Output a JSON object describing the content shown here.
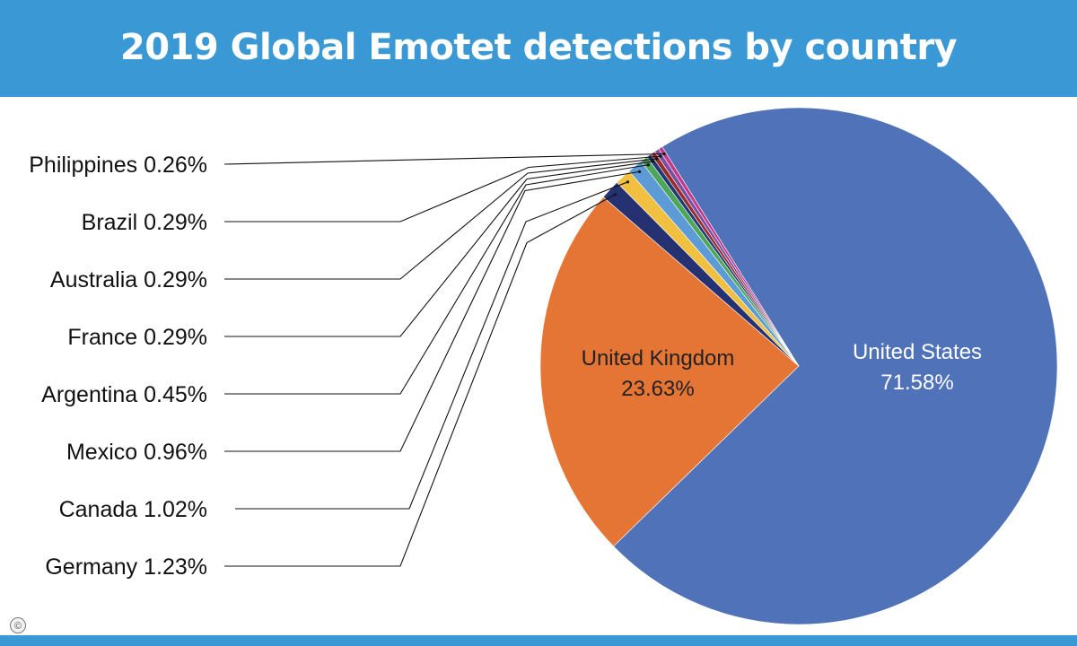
{
  "chart_data": {
    "type": "pie",
    "title": "2019 Global Emotet detections by country",
    "slices": [
      {
        "label": "United States",
        "value": 71.58,
        "value_label": "71.58%",
        "color": "#4f72b8"
      },
      {
        "label": "United Kingdom",
        "value": 23.63,
        "value_label": "23.63%",
        "color": "#e57534"
      },
      {
        "label": "Germany",
        "value": 1.23,
        "value_label": "1.23%",
        "color": "#253170"
      },
      {
        "label": "Canada",
        "value": 1.02,
        "value_label": "1.02%",
        "color": "#f2c040"
      },
      {
        "label": "Mexico",
        "value": 0.96,
        "value_label": "0.96%",
        "color": "#5c9bd6"
      },
      {
        "label": "Argentina",
        "value": 0.45,
        "value_label": "0.45%",
        "color": "#4ea65a"
      },
      {
        "label": "France",
        "value": 0.29,
        "value_label": "0.29%",
        "color": "#1e3a78"
      },
      {
        "label": "Australia",
        "value": 0.29,
        "value_label": "0.29%",
        "color": "#9b2a2a"
      },
      {
        "label": "Brazil",
        "value": 0.29,
        "value_label": "0.29%",
        "color": "#7a4fa0"
      },
      {
        "label": "Philippines",
        "value": 0.26,
        "value_label": "0.26%",
        "color": "#c0398a"
      }
    ],
    "side_labels": [
      {
        "label": "Philippines",
        "value_label": "0.26%"
      },
      {
        "label": "Brazil",
        "value_label": "0.29%"
      },
      {
        "label": "Australia",
        "value_label": "0.29%"
      },
      {
        "label": "France",
        "value_label": "0.29%"
      },
      {
        "label": "Argentina",
        "value_label": "0.45%"
      },
      {
        "label": "Mexico",
        "value_label": "0.96%"
      },
      {
        "label": "Canada",
        "value_label": "1.02%"
      },
      {
        "label": "Germany",
        "value_label": "1.23%"
      }
    ]
  },
  "footer": {
    "copyright_symbol": "©"
  },
  "colors": {
    "header_bg": "#3a99d4",
    "line": "#000000"
  }
}
